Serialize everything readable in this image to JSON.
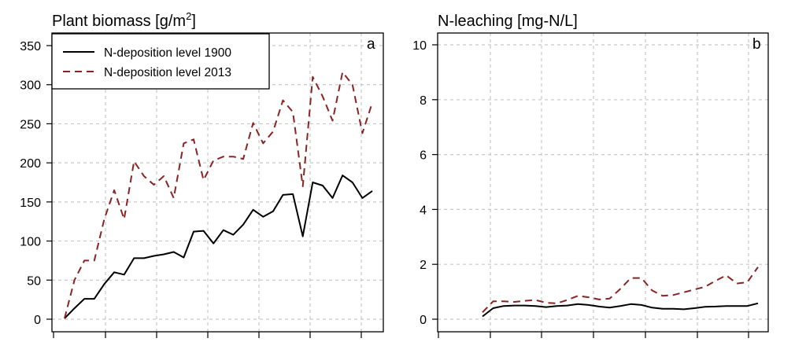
{
  "chart_data": [
    {
      "type": "line",
      "panel": "a",
      "title": "Plant biomass [g/m",
      "title_sup": "2",
      "title_end": "]",
      "ylim": [
        0,
        350
      ],
      "yticks": [
        0,
        50,
        100,
        150,
        200,
        250,
        300,
        350
      ],
      "grid": true,
      "legend": "top-left",
      "series": [
        {
          "name": "N-deposition level 1900",
          "color": "#000000",
          "dash": "solid",
          "values": [
            1,
            14,
            26,
            26,
            45,
            60,
            57,
            78,
            78,
            81,
            83,
            86,
            79,
            112,
            113,
            97,
            114,
            108,
            121,
            140,
            131,
            138,
            159,
            160,
            106,
            175,
            171,
            155,
            184,
            175,
            155,
            164
          ]
        },
        {
          "name": "N-deposition level 2013",
          "color": "#8b2323",
          "dash": "dashed",
          "values": [
            1,
            50,
            75,
            75,
            128,
            165,
            128,
            202,
            183,
            172,
            183,
            155,
            225,
            230,
            178,
            203,
            208,
            208,
            205,
            251,
            225,
            240,
            280,
            265,
            170,
            310,
            285,
            254,
            316,
            300,
            238,
            277
          ]
        }
      ]
    },
    {
      "type": "line",
      "panel": "b",
      "title": "N-leaching [mg-N/L]",
      "ylim": [
        0,
        10
      ],
      "yticks": [
        0,
        2,
        4,
        6,
        8,
        10
      ],
      "grid": true,
      "series": [
        {
          "name": "N-deposition level 1900",
          "color": "#000000",
          "dash": "solid",
          "values": [
            0.1,
            0.4,
            0.48,
            0.5,
            0.5,
            0.48,
            0.44,
            0.48,
            0.5,
            0.55,
            0.52,
            0.46,
            0.42,
            0.48,
            0.55,
            0.52,
            0.42,
            0.38,
            0.38,
            0.36,
            0.4,
            0.45,
            0.46,
            0.48,
            0.48,
            0.48,
            0.58
          ]
        },
        {
          "name": "N-deposition level 2013",
          "color": "#8b2323",
          "dash": "dashed",
          "values": [
            0.25,
            0.65,
            0.65,
            0.63,
            0.67,
            0.7,
            0.6,
            0.58,
            0.7,
            0.85,
            0.8,
            0.72,
            0.75,
            1.1,
            1.5,
            1.5,
            1.05,
            0.85,
            0.88,
            0.98,
            1.08,
            1.18,
            1.4,
            1.6,
            1.3,
            1.35,
            1.9
          ]
        }
      ]
    }
  ]
}
